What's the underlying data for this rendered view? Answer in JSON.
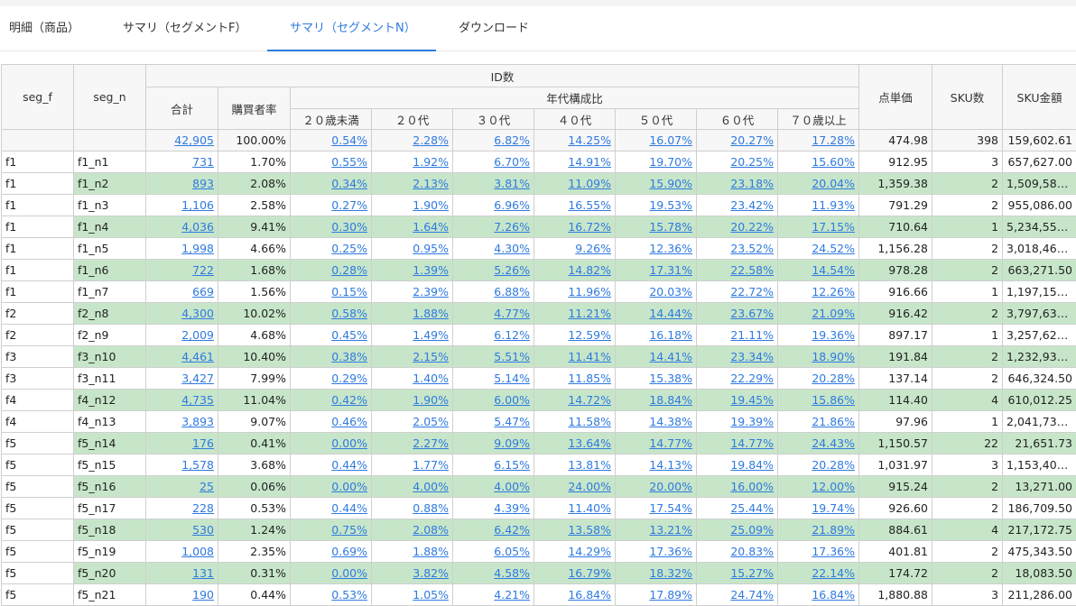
{
  "tabs": [
    {
      "label": "明細（商品）",
      "active": false
    },
    {
      "label": "サマリ（セグメントF）",
      "active": false
    },
    {
      "label": "サマリ（セグメントN）",
      "active": true
    },
    {
      "label": "ダウンロード",
      "active": false
    }
  ],
  "headers": {
    "seg_f": "seg_f",
    "seg_n": "seg_n",
    "id_group": "ID数",
    "total": "合計",
    "purchase_rate": "購買者率",
    "age_group": "年代構成比",
    "ages": [
      "２０歳未満",
      "２０代",
      "３０代",
      "４０代",
      "５０代",
      "６０代",
      "７０歳以上"
    ],
    "unit_price": "点単価",
    "sku_count": "SKU数",
    "sku_amount": "SKU金額"
  },
  "total_row": {
    "seg_f": "",
    "seg_n": "",
    "total": "42,905",
    "rate": "100.00%",
    "ages": [
      "0.54%",
      "2.28%",
      "6.82%",
      "14.25%",
      "16.07%",
      "20.27%",
      "17.28%"
    ],
    "price": "474.98",
    "sku": "398",
    "amount": "159,602.61"
  },
  "rows": [
    {
      "f": "f1",
      "n": "f1_n1",
      "total": "731",
      "rate": "1.70%",
      "ages": [
        "0.55%",
        "1.92%",
        "6.70%",
        "14.91%",
        "19.70%",
        "20.25%",
        "15.60%"
      ],
      "price": "912.95",
      "sku": "3",
      "amount": "657,627.00",
      "hl": false
    },
    {
      "f": "f1",
      "n": "f1_n2",
      "total": "893",
      "rate": "2.08%",
      "ages": [
        "0.34%",
        "2.13%",
        "3.81%",
        "11.09%",
        "15.90%",
        "23.18%",
        "20.04%"
      ],
      "price": "1,359.38",
      "sku": "2",
      "amount": "1,509,586.…",
      "hl": true
    },
    {
      "f": "f1",
      "n": "f1_n3",
      "total": "1,106",
      "rate": "2.58%",
      "ages": [
        "0.27%",
        "1.90%",
        "6.96%",
        "16.55%",
        "19.53%",
        "23.42%",
        "11.93%"
      ],
      "price": "791.29",
      "sku": "2",
      "amount": "955,086.00",
      "hl": false
    },
    {
      "f": "f1",
      "n": "f1_n4",
      "total": "4,036",
      "rate": "9.41%",
      "ages": [
        "0.30%",
        "1.64%",
        "7.26%",
        "16.72%",
        "15.78%",
        "20.22%",
        "17.15%"
      ],
      "price": "710.64",
      "sku": "1",
      "amount": "5,234,558.…",
      "hl": true
    },
    {
      "f": "f1",
      "n": "f1_n5",
      "total": "1,998",
      "rate": "4.66%",
      "ages": [
        "0.25%",
        "0.95%",
        "4.30%",
        "9.26%",
        "12.36%",
        "23.52%",
        "24.52%"
      ],
      "price": "1,156.28",
      "sku": "2",
      "amount": "3,018,460.…",
      "hl": false
    },
    {
      "f": "f1",
      "n": "f1_n6",
      "total": "722",
      "rate": "1.68%",
      "ages": [
        "0.28%",
        "1.39%",
        "5.26%",
        "14.82%",
        "17.31%",
        "22.58%",
        "14.54%"
      ],
      "price": "978.28",
      "sku": "2",
      "amount": "663,271.50",
      "hl": true
    },
    {
      "f": "f1",
      "n": "f1_n7",
      "total": "669",
      "rate": "1.56%",
      "ages": [
        "0.15%",
        "2.39%",
        "6.88%",
        "11.96%",
        "20.03%",
        "22.72%",
        "12.26%"
      ],
      "price": "916.66",
      "sku": "1",
      "amount": "1,197,154.…",
      "hl": false
    },
    {
      "f": "f2",
      "n": "f2_n8",
      "total": "4,300",
      "rate": "10.02%",
      "ages": [
        "0.58%",
        "1.88%",
        "4.77%",
        "11.21%",
        "14.44%",
        "23.67%",
        "21.09%"
      ],
      "price": "916.42",
      "sku": "2",
      "amount": "3,797,636.…",
      "hl": true
    },
    {
      "f": "f2",
      "n": "f2_n9",
      "total": "2,009",
      "rate": "4.68%",
      "ages": [
        "0.45%",
        "1.49%",
        "6.12%",
        "12.59%",
        "16.18%",
        "21.11%",
        "19.36%"
      ],
      "price": "897.17",
      "sku": "1",
      "amount": "3,257,622.…",
      "hl": false
    },
    {
      "f": "f3",
      "n": "f3_n10",
      "total": "4,461",
      "rate": "10.40%",
      "ages": [
        "0.38%",
        "2.15%",
        "5.51%",
        "11.41%",
        "14.41%",
        "23.34%",
        "18.90%"
      ],
      "price": "191.84",
      "sku": "2",
      "amount": "1,232,931.…",
      "hl": true
    },
    {
      "f": "f3",
      "n": "f3_n11",
      "total": "3,427",
      "rate": "7.99%",
      "ages": [
        "0.29%",
        "1.40%",
        "5.14%",
        "11.85%",
        "15.38%",
        "22.29%",
        "20.28%"
      ],
      "price": "137.14",
      "sku": "2",
      "amount": "646,324.50",
      "hl": false
    },
    {
      "f": "f4",
      "n": "f4_n12",
      "total": "4,735",
      "rate": "11.04%",
      "ages": [
        "0.42%",
        "1.90%",
        "6.00%",
        "14.72%",
        "18.84%",
        "19.45%",
        "15.86%"
      ],
      "price": "114.40",
      "sku": "4",
      "amount": "610,012.25",
      "hl": true
    },
    {
      "f": "f4",
      "n": "f4_n13",
      "total": "3,893",
      "rate": "9.07%",
      "ages": [
        "0.46%",
        "2.05%",
        "5.47%",
        "11.58%",
        "14.38%",
        "19.39%",
        "21.86%"
      ],
      "price": "97.96",
      "sku": "1",
      "amount": "2,041,735.…",
      "hl": false
    },
    {
      "f": "f5",
      "n": "f5_n14",
      "total": "176",
      "rate": "0.41%",
      "ages": [
        "0.00%",
        "2.27%",
        "9.09%",
        "13.64%",
        "14.77%",
        "14.77%",
        "24.43%"
      ],
      "price": "1,150.57",
      "sku": "22",
      "amount": "21,651.73",
      "hl": true
    },
    {
      "f": "f5",
      "n": "f5_n15",
      "total": "1,578",
      "rate": "3.68%",
      "ages": [
        "0.44%",
        "1.77%",
        "6.15%",
        "13.81%",
        "14.13%",
        "19.84%",
        "20.28%"
      ],
      "price": "1,031.97",
      "sku": "3",
      "amount": "1,153,402.…",
      "hl": false
    },
    {
      "f": "f5",
      "n": "f5_n16",
      "total": "25",
      "rate": "0.06%",
      "ages": [
        "0.00%",
        "4.00%",
        "4.00%",
        "24.00%",
        "20.00%",
        "16.00%",
        "12.00%"
      ],
      "price": "915.24",
      "sku": "2",
      "amount": "13,271.00",
      "hl": true
    },
    {
      "f": "f5",
      "n": "f5_n17",
      "total": "228",
      "rate": "0.53%",
      "ages": [
        "0.44%",
        "0.88%",
        "4.39%",
        "11.40%",
        "17.54%",
        "25.44%",
        "19.74%"
      ],
      "price": "926.60",
      "sku": "2",
      "amount": "186,709.50",
      "hl": false
    },
    {
      "f": "f5",
      "n": "f5_n18",
      "total": "530",
      "rate": "1.24%",
      "ages": [
        "0.75%",
        "2.08%",
        "6.42%",
        "13.58%",
        "13.21%",
        "25.09%",
        "21.89%"
      ],
      "price": "884.61",
      "sku": "4",
      "amount": "217,172.75",
      "hl": true
    },
    {
      "f": "f5",
      "n": "f5_n19",
      "total": "1,008",
      "rate": "2.35%",
      "ages": [
        "0.69%",
        "1.88%",
        "6.05%",
        "14.29%",
        "17.36%",
        "20.83%",
        "17.36%"
      ],
      "price": "401.81",
      "sku": "2",
      "amount": "475,343.50",
      "hl": false
    },
    {
      "f": "f5",
      "n": "f5_n20",
      "total": "131",
      "rate": "0.31%",
      "ages": [
        "0.00%",
        "3.82%",
        "4.58%",
        "16.79%",
        "18.32%",
        "15.27%",
        "22.14%"
      ],
      "price": "174.72",
      "sku": "2",
      "amount": "18,083.50",
      "hl": true
    },
    {
      "f": "f5",
      "n": "f5_n21",
      "total": "190",
      "rate": "0.44%",
      "ages": [
        "0.53%",
        "1.05%",
        "4.21%",
        "16.84%",
        "17.89%",
        "24.74%",
        "16.84%"
      ],
      "price": "1,880.88",
      "sku": "3",
      "amount": "211,286.00",
      "hl": false
    }
  ],
  "colors": {
    "accent": "#2f7ae0",
    "highlight": "#c7e6c9",
    "header_bg": "#f7f7f7",
    "border": "#cfcfcf"
  }
}
